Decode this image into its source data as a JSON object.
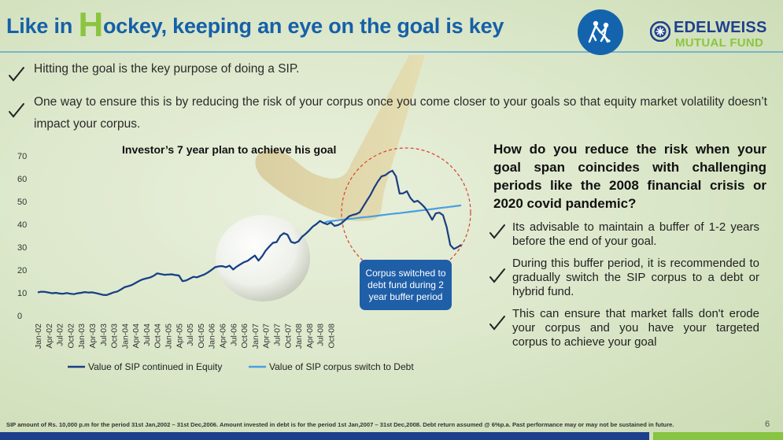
{
  "header": {
    "title_before": "Like in ",
    "title_h": "H",
    "title_after": "ockey, keeping an eye on the goal is key",
    "brand_line1": "EDELWEISS",
    "brand_line2": "MUTUAL FUND"
  },
  "bullets": [
    "Hitting the goal is the key purpose of doing a SIP.",
    "One way to ensure this is by reducing the risk of your corpus once you come closer to your goals so that equity market volatility doesn’t impact your corpus."
  ],
  "right_panel": {
    "question": "How do you reduce the risk when your goal span coincides with challenging periods like the 2008 financial crisis or 2020 covid pandemic?",
    "points": [
      "Its advisable to maintain a buffer of 1-2 years before the end of your goal.",
      "During this buffer period, it is recommended to gradually switch the SIP corpus to a debt or hybrid fund.",
      "This can ensure that market falls don't erode your corpus and you have your targeted corpus to achieve your goal"
    ]
  },
  "callout": "Corpus switched to debt fund during 2 year buffer period",
  "footnote": "SIP amount of Rs. 10,000 p.m for the period 31st Jan,2002 – 31st Dec,2006. Amount invested in debt is for the period 1st Jan,2007 – 31st Dec,2008. Debt return assumed @ 6%p.a. Past performance may or may not be sustained in future.",
  "page_number": "6",
  "colors": {
    "title_blue": "#1560a8",
    "accent_green": "#8bc53f",
    "equity_line": "#1a3f82",
    "debt_line": "#4a9fe0",
    "callout_fill": "#1f5fa8",
    "circle_dash": "#d9412e"
  },
  "chart_data": {
    "type": "line",
    "title": "Investor’s 7 year plan to achieve his goal",
    "ylim": [
      0,
      70
    ],
    "yticks": [
      0,
      10,
      20,
      30,
      40,
      50,
      60,
      70
    ],
    "x_tick_labels": [
      "Jan-02",
      "Apr-02",
      "Jul-02",
      "Oct-02",
      "Jan-03",
      "Apr-03",
      "Jul-03",
      "Oct-03",
      "Jan-04",
      "Apr-04",
      "Jul-04",
      "Oct-04",
      "Jan-05",
      "Apr-05",
      "Jul-05",
      "Oct-05",
      "Jan-06",
      "Apr-06",
      "Jul-06",
      "Oct-06",
      "Jan-07",
      "Apr-07",
      "Jul-07",
      "Oct-07",
      "Jan-08",
      "Apr-08",
      "Jul-08",
      "Oct-08"
    ],
    "x_start": "Jan-02",
    "x_end": "Dec-08",
    "legend_position": "bottom",
    "series": [
      {
        "name": "Value of SIP continued in Equity",
        "color": "#1a3f82",
        "values": [
          10.2,
          10.5,
          10.4,
          10.1,
          9.8,
          10.0,
          9.7,
          9.6,
          9.9,
          9.6,
          9.4,
          9.8,
          10.0,
          10.3,
          10.1,
          10.2,
          9.9,
          9.5,
          9.1,
          9.0,
          9.6,
          10.2,
          10.6,
          11.5,
          12.5,
          12.9,
          13.4,
          14.3,
          15.2,
          15.9,
          16.3,
          16.7,
          17.4,
          18.5,
          18.2,
          17.9,
          18.0,
          18.1,
          17.8,
          17.6,
          15.1,
          15.4,
          16.2,
          17.0,
          16.8,
          17.4,
          18.0,
          18.9,
          20.0,
          21.2,
          21.6,
          21.7,
          21.2,
          21.9,
          20.2,
          21.5,
          22.5,
          23.4,
          24.0,
          25.2,
          26.3,
          24.1,
          26.0,
          28.5,
          30.3,
          31.9,
          32.2,
          34.9,
          36.1,
          35.5,
          32.3,
          31.8,
          32.5,
          34.5,
          35.8,
          37.3,
          39.0,
          40.1,
          41.5,
          40.6,
          40.0,
          40.8,
          39.3,
          39.7,
          40.5,
          42.0,
          43.5,
          44.1,
          44.5,
          45.3,
          47.9,
          50.5,
          53.0,
          56.1,
          58.8,
          61.0,
          61.5,
          62.7,
          63.5,
          61.0,
          53.5,
          53.6,
          54.5,
          51.5,
          49.8,
          50.3,
          48.9,
          47.3,
          44.8,
          42.0,
          44.8,
          45.1,
          44.0,
          38.8,
          30.9,
          29.2,
          30.0,
          31.0
        ]
      },
      {
        "name": "Value of SIP corpus switch to Debt",
        "color": "#4a9fe0",
        "values": [
          10.2,
          10.5,
          10.4,
          10.1,
          9.8,
          10.0,
          9.7,
          9.6,
          9.9,
          9.6,
          9.4,
          9.8,
          10.0,
          10.3,
          10.1,
          10.2,
          9.9,
          9.5,
          9.1,
          9.0,
          9.6,
          10.2,
          10.6,
          11.5,
          12.5,
          12.9,
          13.4,
          14.3,
          15.2,
          15.9,
          16.3,
          16.7,
          17.4,
          18.5,
          18.2,
          17.9,
          18.0,
          18.1,
          17.8,
          17.6,
          15.1,
          15.4,
          16.2,
          17.0,
          16.8,
          17.4,
          18.0,
          18.9,
          20.0,
          21.2,
          21.6,
          21.7,
          21.2,
          21.9,
          20.2,
          21.5,
          22.5,
          23.4,
          24.0,
          25.2,
          26.3,
          24.1,
          26.0,
          28.5,
          30.3,
          31.9,
          32.2,
          34.9,
          36.1,
          35.5,
          32.3,
          31.8,
          32.5,
          34.5,
          35.8,
          37.3,
          39.0,
          40.1,
          41.5,
          40.6,
          41.2,
          41.4,
          41.6,
          41.8,
          42.0,
          42.2,
          42.4,
          42.5,
          42.7,
          42.9,
          43.1,
          43.2,
          43.4,
          43.6,
          43.8,
          44.0,
          44.2,
          44.4,
          44.6,
          44.8,
          44.9,
          45.1,
          45.3,
          45.5,
          45.7,
          45.9,
          46.1,
          46.3,
          46.5,
          46.7,
          46.9,
          47.1,
          47.3,
          47.5,
          47.7,
          47.9,
          48.1,
          48.3
        ]
      }
    ]
  }
}
